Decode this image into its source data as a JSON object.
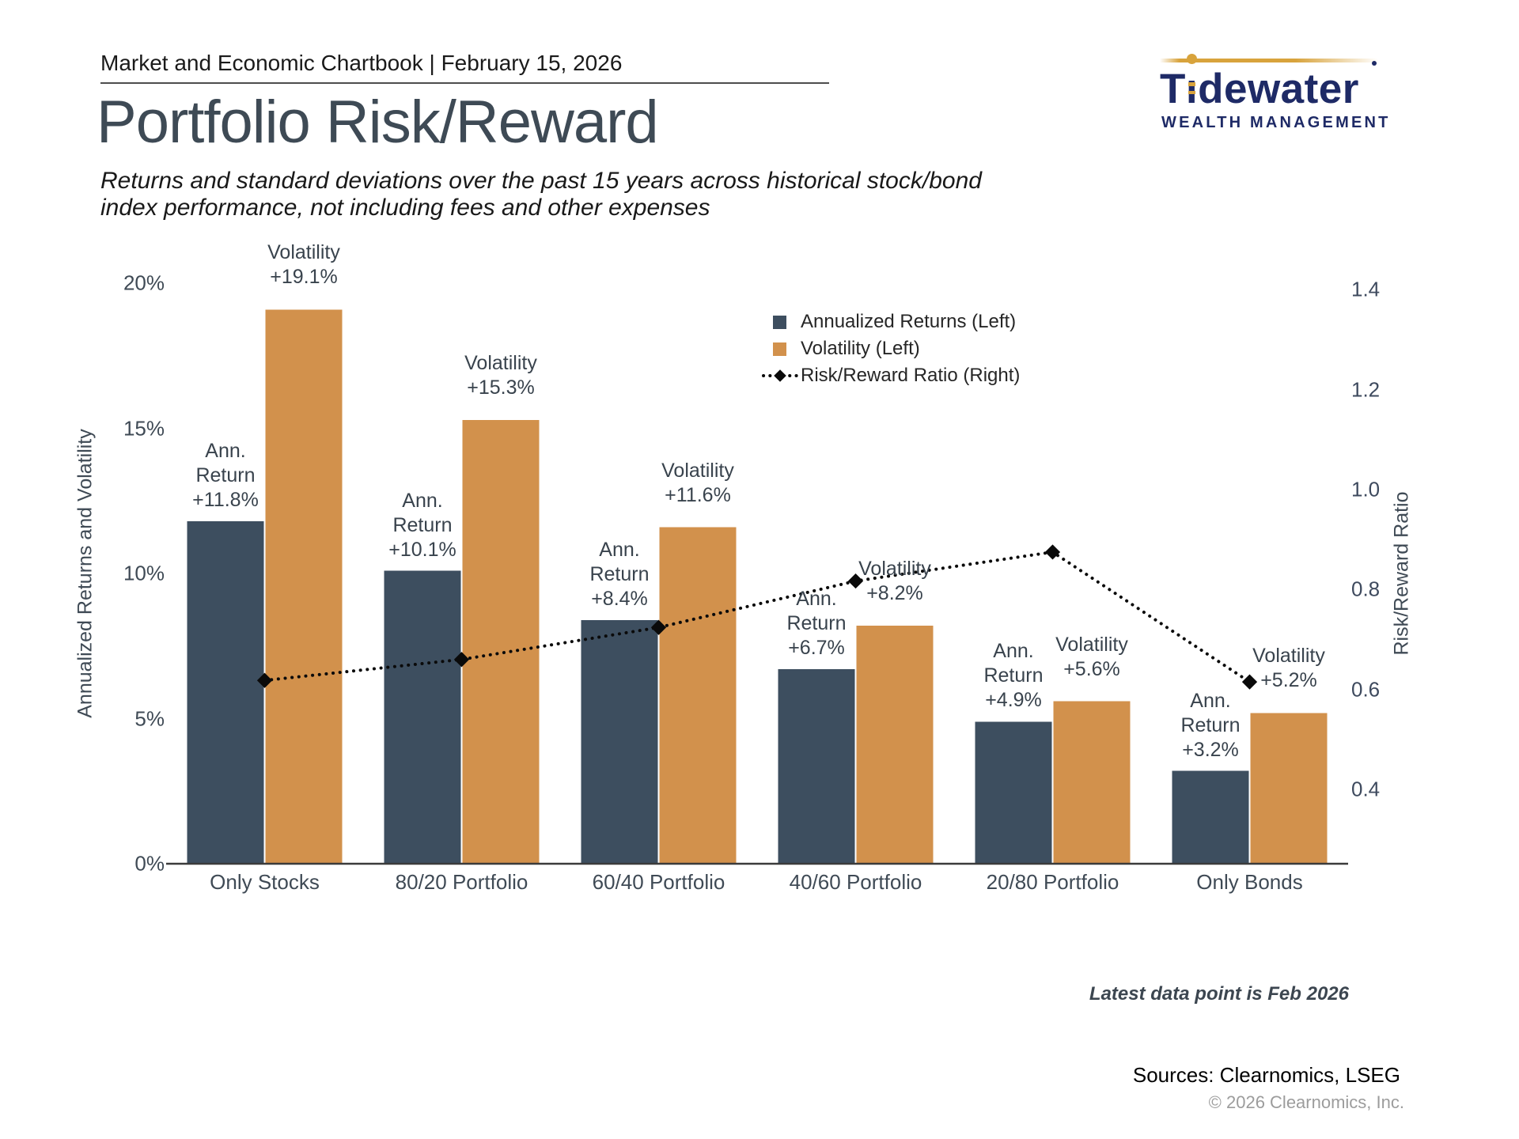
{
  "header": {
    "chartbook_line": "Market and Economic Chartbook | February 15, 2026",
    "title": "Portfolio Risk/Reward",
    "subtitle_line1": "Returns and standard deviations over the past 15 years across historical stock/bond",
    "subtitle_line2": "index performance, not including fees and other expenses"
  },
  "logo": {
    "wordmark": "Tıdewater",
    "tagline": "WEALTH MANAGEMENT",
    "navy": "#1e2a66",
    "gold": "#d8a33c"
  },
  "chart_data": {
    "type": "bar",
    "categories": [
      "Only Stocks",
      "80/20 Portfolio",
      "60/40 Portfolio",
      "40/60 Portfolio",
      "20/80 Portfolio",
      "Only Bonds"
    ],
    "series": [
      {
        "name": "Annualized Returns (Left)",
        "type": "bar",
        "axis": "left",
        "color": "#3d4e5f",
        "values": [
          11.8,
          10.1,
          8.4,
          6.7,
          4.9,
          3.2
        ],
        "point_label_lines": [
          "Ann.",
          "Return"
        ]
      },
      {
        "name": "Volatility (Left)",
        "type": "bar",
        "axis": "left",
        "color": "#d2914c",
        "values": [
          19.1,
          15.3,
          11.6,
          8.2,
          5.6,
          5.2
        ],
        "point_label_lines": [
          "Volatility"
        ]
      },
      {
        "name": "Risk/Reward Ratio (Right)",
        "type": "line",
        "axis": "right",
        "color": "#0a0a0a",
        "values": [
          0.618,
          0.66,
          0.724,
          0.817,
          0.875,
          0.615
        ]
      }
    ],
    "left_axis": {
      "title": "Annualized Returns and Volatility",
      "tick_labels": [
        "0%",
        "5%",
        "10%",
        "15%",
        "20%"
      ],
      "tick_values": [
        0,
        5,
        10,
        15,
        20
      ],
      "range": [
        0,
        20
      ]
    },
    "right_axis": {
      "title": "Risk/Reward Ratio",
      "tick_labels": [
        "0.4",
        "0.6",
        "0.8",
        "1.0",
        "1.2",
        "1.4"
      ],
      "tick_values": [
        0.4,
        0.6,
        0.8,
        1.0,
        1.2,
        1.4
      ],
      "range": [
        0.4,
        1.4
      ]
    },
    "value_prefix": "+",
    "value_suffix": "%",
    "grid": false,
    "legend_position": "upper-middle"
  },
  "footer": {
    "annotation": "Latest data point is Feb 2026",
    "sources": "Sources: Clearnomics, LSEG",
    "copyright": "© 2026 Clearnomics, Inc."
  }
}
